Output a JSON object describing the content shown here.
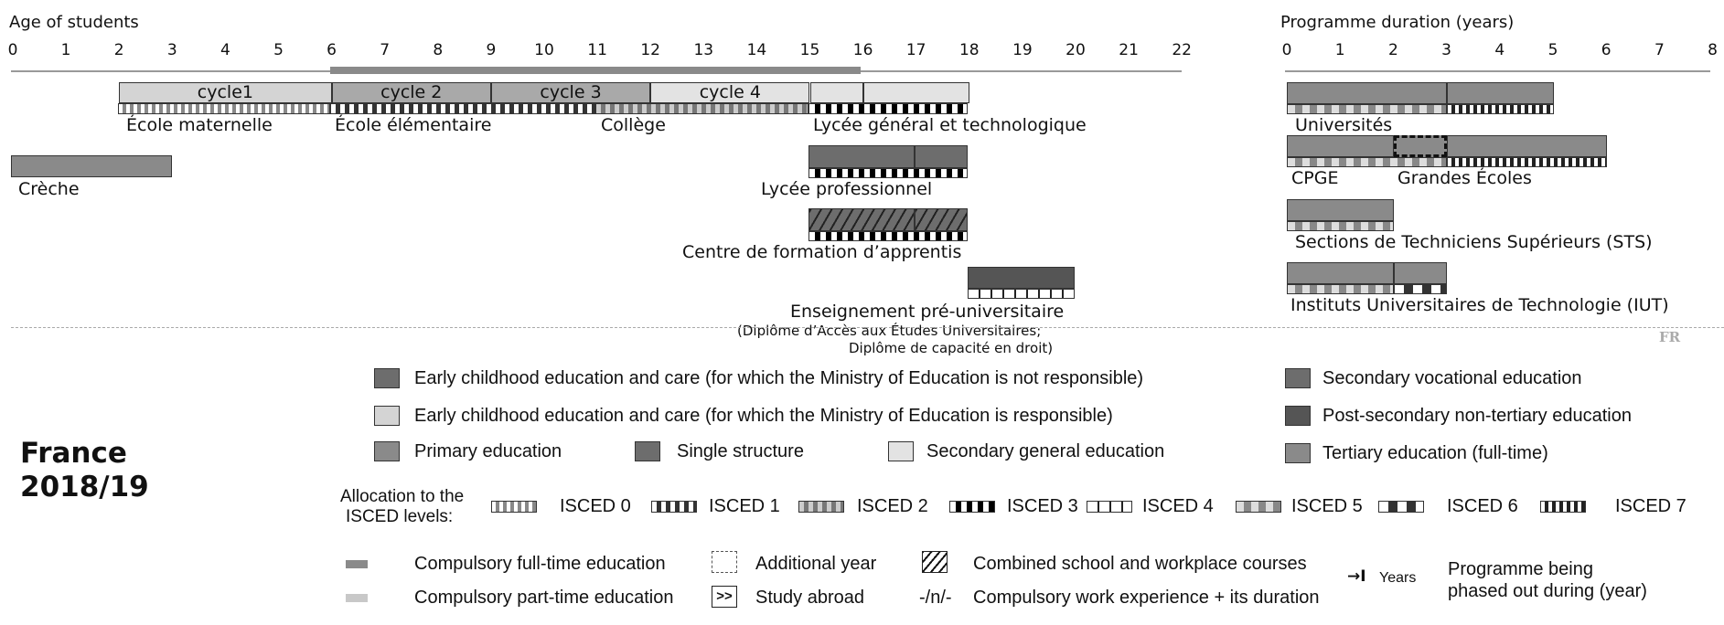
{
  "left_axis": {
    "title": "Age of students",
    "ticks": [
      "0",
      "1",
      "2",
      "3",
      "4",
      "5",
      "6",
      "7",
      "8",
      "9",
      "10",
      "11",
      "12",
      "13",
      "14",
      "15",
      "16",
      "17",
      "18",
      "19",
      "20",
      "21",
      "22"
    ]
  },
  "right_axis": {
    "title": "Programme duration (years)",
    "ticks": [
      "0",
      "1",
      "2",
      "3",
      "4",
      "5",
      "6",
      "7",
      "8"
    ]
  },
  "compulsory_band": {
    "from": 6,
    "to": 16
  },
  "cycles": [
    {
      "label": "cycle1",
      "from": 2,
      "to": 6,
      "kind": "light"
    },
    {
      "label": "cycle 2",
      "from": 6,
      "to": 9,
      "kind": "mid"
    },
    {
      "label": "cycle 3",
      "from": 9,
      "to": 12,
      "kind": "mid"
    },
    {
      "label": "cycle 4",
      "from": 12,
      "to": 15,
      "kind": "pale"
    },
    {
      "label": "",
      "from": 15,
      "to": 16,
      "kind": "pale"
    },
    {
      "label": "",
      "from": 16,
      "to": 18,
      "kind": "pale"
    }
  ],
  "school_labels": {
    "maternelle": "École maternelle",
    "elementaire": "École élémentaire",
    "college": "Collège",
    "lycee_gt": "Lycée général et technologique",
    "creche": "Crèche",
    "lycee_pro": "Lycée professionnel",
    "cfa": "Centre de formation d’apprentis",
    "pre_univ": "Enseignement pré-universitaire",
    "pre_univ_note1": "(Diplôme d’Accès aux Études Universitaires;",
    "pre_univ_note2": "Diplôme de capacité en droit)"
  },
  "tertiary_labels": {
    "univ": "Universités",
    "cpge": "CPGE",
    "ge": "Grandes Écoles",
    "sts": "Sections de Techniciens Supérieurs (STS)",
    "iut": "Instituts Universitaires de Technologie (IUT)"
  },
  "country_code": "FR",
  "country": {
    "name": "France",
    "year": "2018/19"
  },
  "legend": {
    "ecec_not": "Early childhood education and care (for which the Ministry of Education is not responsible)",
    "ecec_resp": "Early childhood education and care (for which the Ministry of Education is responsible)",
    "primary": "Primary education",
    "single": "Single structure",
    "secondary_general": "Secondary general education",
    "secondary_vocational": "Secondary vocational education",
    "post_secondary": "Post-secondary non-tertiary education",
    "tertiary": "Tertiary education (full-time)"
  },
  "isced": {
    "title1": "Allocation to the",
    "title2": "ISCED levels:",
    "levels": [
      "ISCED 0",
      "ISCED 1",
      "ISCED 2",
      "ISCED 3",
      "ISCED 4",
      "ISCED 5",
      "ISCED 6",
      "ISCED 7"
    ]
  },
  "notes": {
    "compulsory_full": "Compulsory full-time education",
    "compulsory_part": "Compulsory part-time education",
    "additional_year": "Additional year",
    "study_abroad": "Study abroad",
    "study_abroad_symbol": ">>",
    "combined": "Combined school and workplace courses",
    "work_exp": "Compulsory work experience + its duration",
    "work_exp_symbol": "-/n/-",
    "years_arrow": "→I",
    "years": "Years",
    "phased_out_1": "Programme being",
    "phased_out_2": "phased out during (year)"
  }
}
